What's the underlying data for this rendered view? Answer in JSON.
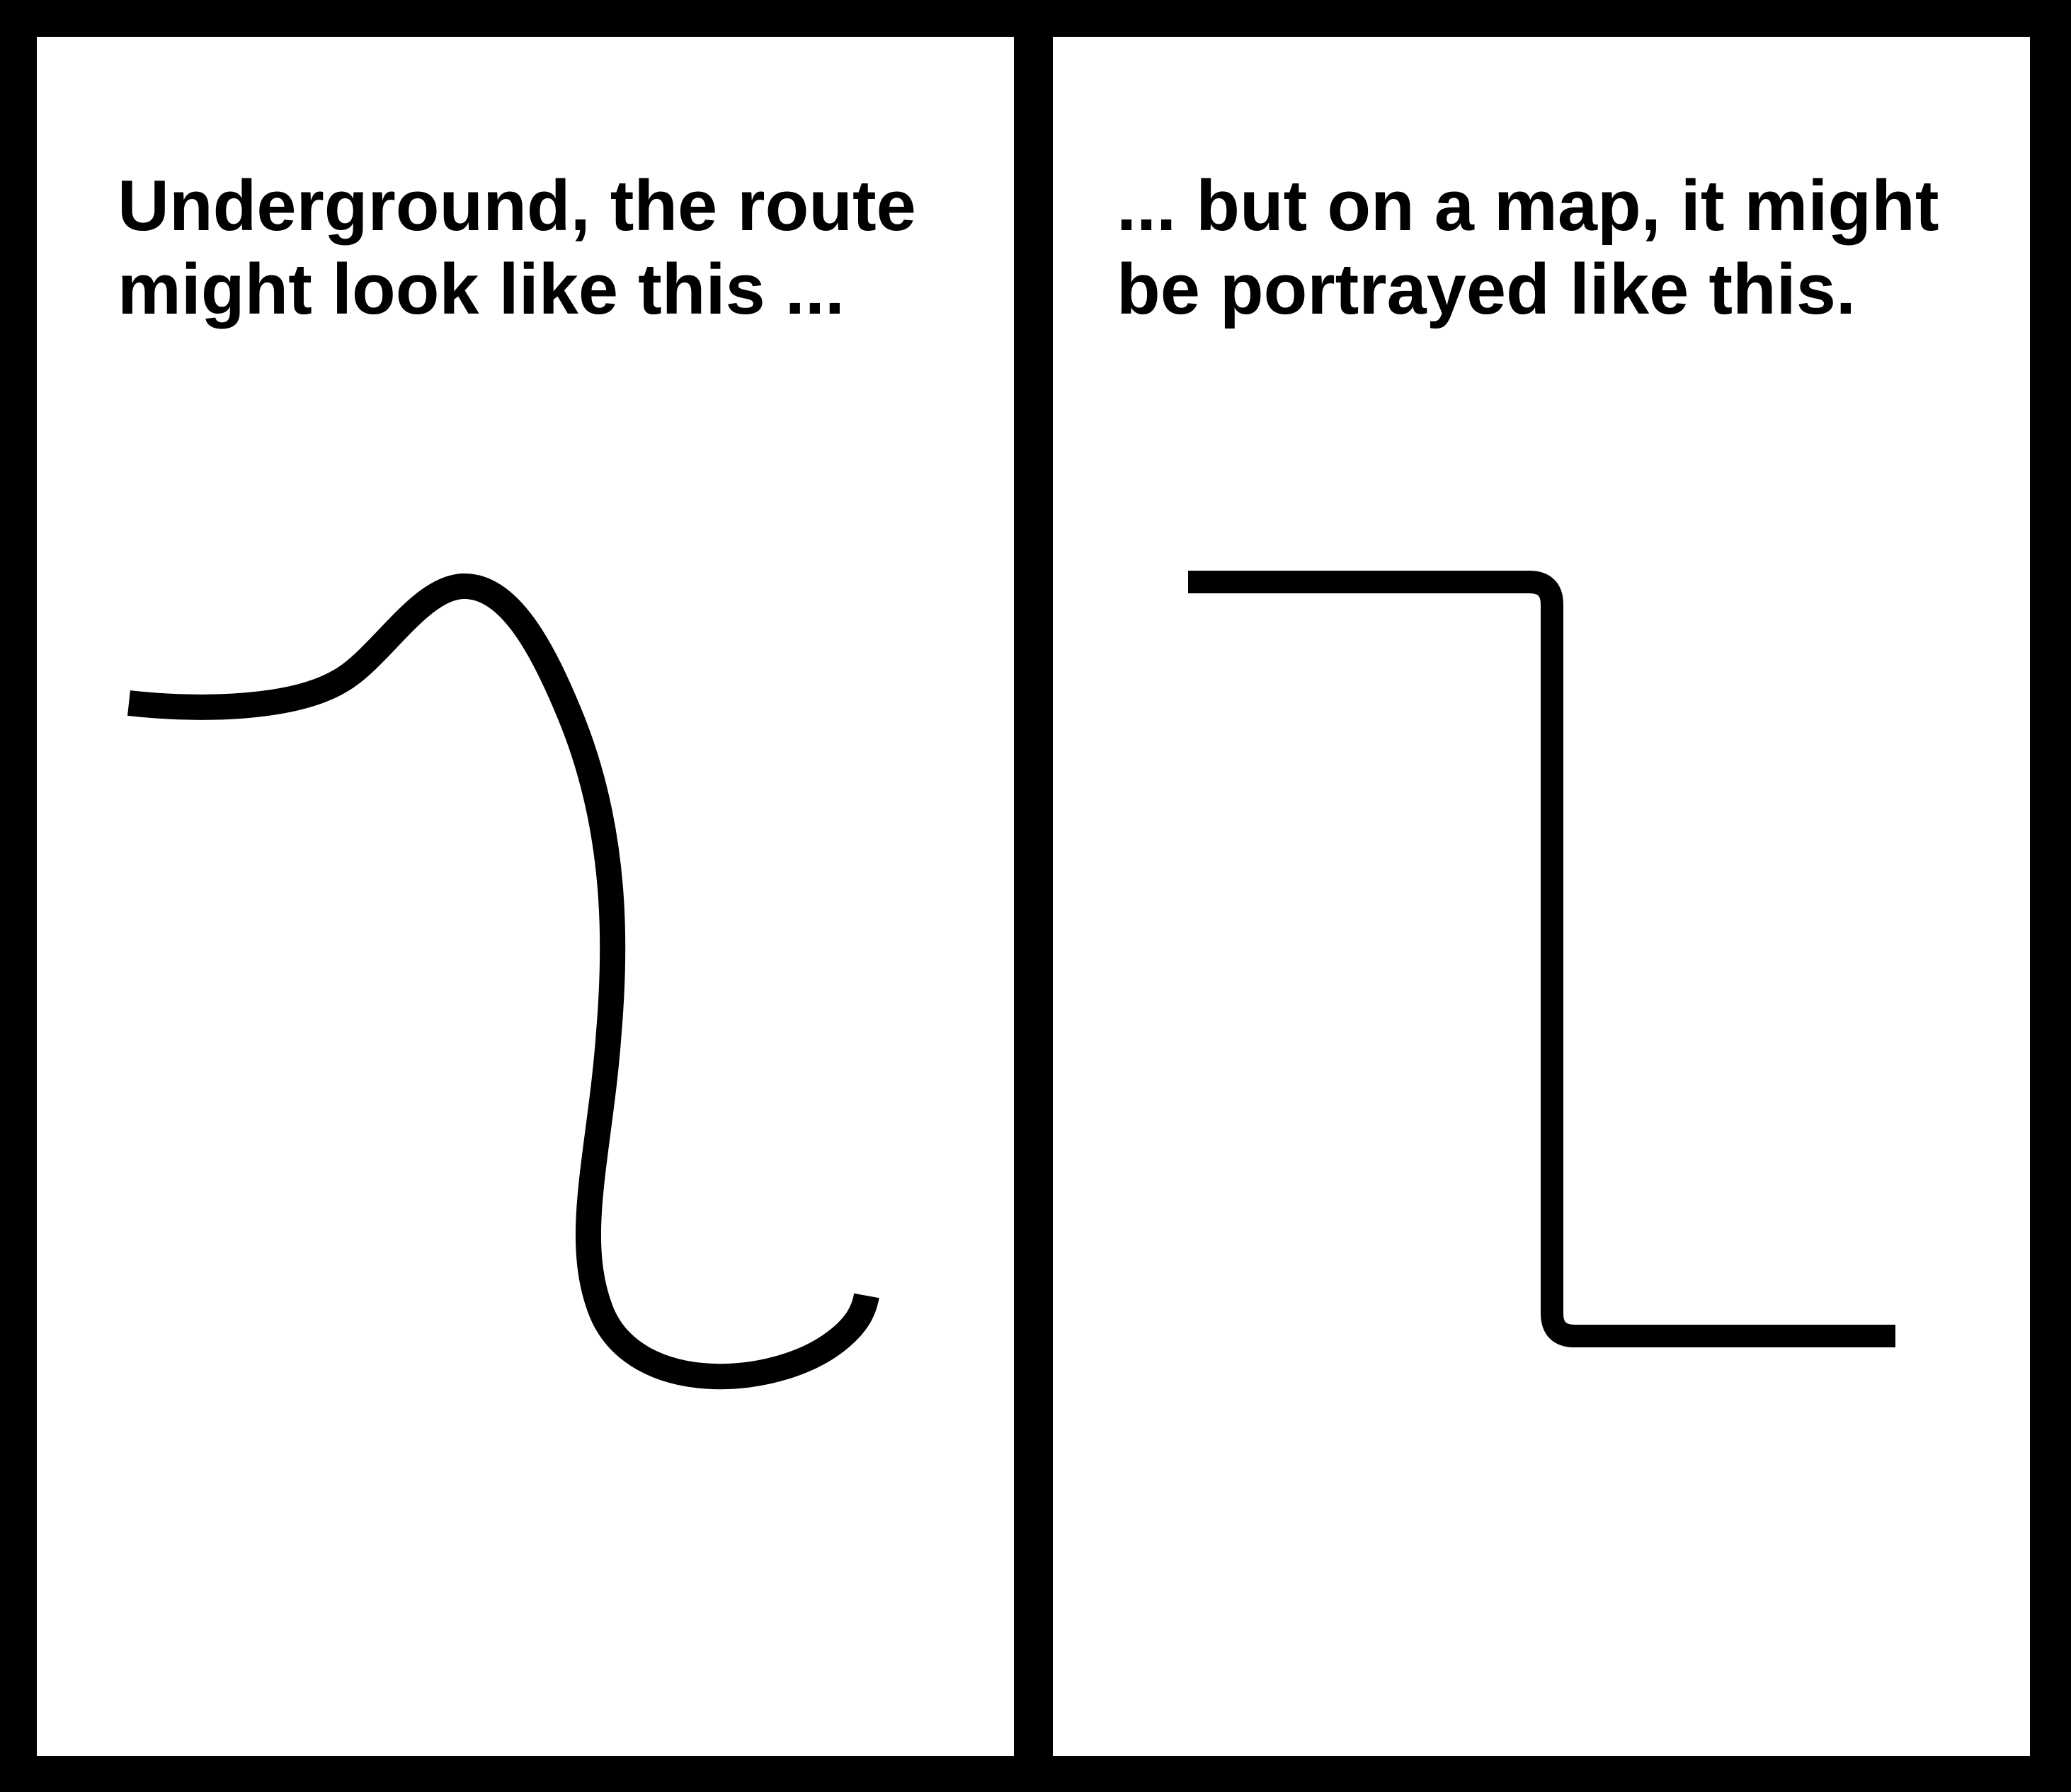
{
  "panels": {
    "left": {
      "caption_line1": "Underground, the route",
      "caption_line2": "might look like this ..."
    },
    "right": {
      "caption_line1": "... but on a map, it might",
      "caption_line2": "be portrayed like this."
    }
  },
  "colors": {
    "border": "#000000",
    "background": "#ffffff",
    "route": "#000000"
  }
}
